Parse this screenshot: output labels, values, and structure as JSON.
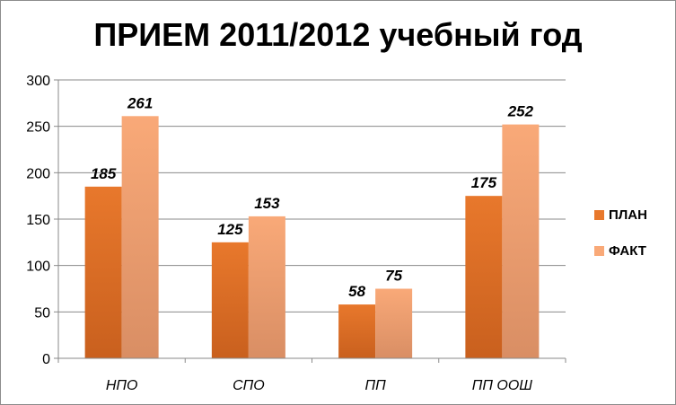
{
  "chart_data": {
    "type": "bar",
    "title": "ПРИЕМ 2011/2012 учебный год",
    "categories": [
      "НПО",
      "СПО",
      "ПП",
      "ПП ООШ"
    ],
    "series": [
      {
        "name": "ПЛАН",
        "values": [
          185,
          125,
          58,
          175
        ],
        "color": "#E8782C"
      },
      {
        "name": "ФАКТ",
        "values": [
          261,
          153,
          75,
          252
        ],
        "color": "#F9A978"
      }
    ],
    "ylim": [
      0,
      300
    ],
    "yticks": [
      0,
      50,
      100,
      150,
      200,
      250,
      300
    ],
    "xlabel": "",
    "ylabel": "",
    "grid": true,
    "legend_position": "right"
  }
}
